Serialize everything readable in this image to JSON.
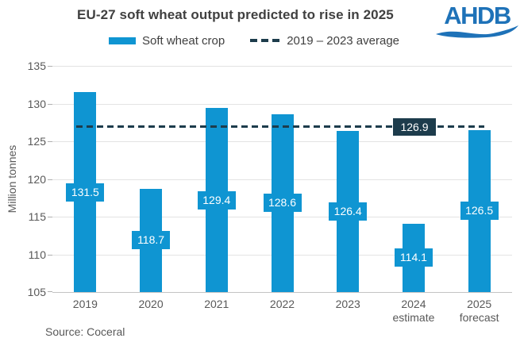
{
  "header": {
    "title": "EU-27 soft wheat output predicted to rise in 2025",
    "logo_text": "AHDB",
    "logo_color": "#1e72b8"
  },
  "legend": {
    "bar_label": "Soft wheat crop",
    "line_label": "2019 – 2023 average"
  },
  "chart_data": {
    "type": "bar",
    "title": "EU-27 soft wheat output predicted to rise in 2025",
    "ylabel": "Million tonnes",
    "ylim": [
      105,
      135
    ],
    "yticks": [
      135,
      130,
      125,
      120,
      115,
      110,
      105
    ],
    "categories": [
      "2019",
      "2020",
      "2021",
      "2022",
      "2023",
      "2024",
      "2025"
    ],
    "category_sublabels": [
      "",
      "",
      "",
      "",
      "",
      "estimate",
      "forecast"
    ],
    "series": [
      {
        "name": "Soft wheat crop",
        "values": [
          131.5,
          118.7,
          129.4,
          128.6,
          126.4,
          114.1,
          126.5
        ]
      }
    ],
    "average_line": {
      "name": "2019 – 2023 average",
      "value": 126.9,
      "label": "126.9"
    },
    "grid": true,
    "legend_position": "top",
    "colors": {
      "bar": "#0f95d2",
      "average": "#1d3c4c"
    }
  },
  "footer": {
    "source": "Source: Coceral"
  }
}
